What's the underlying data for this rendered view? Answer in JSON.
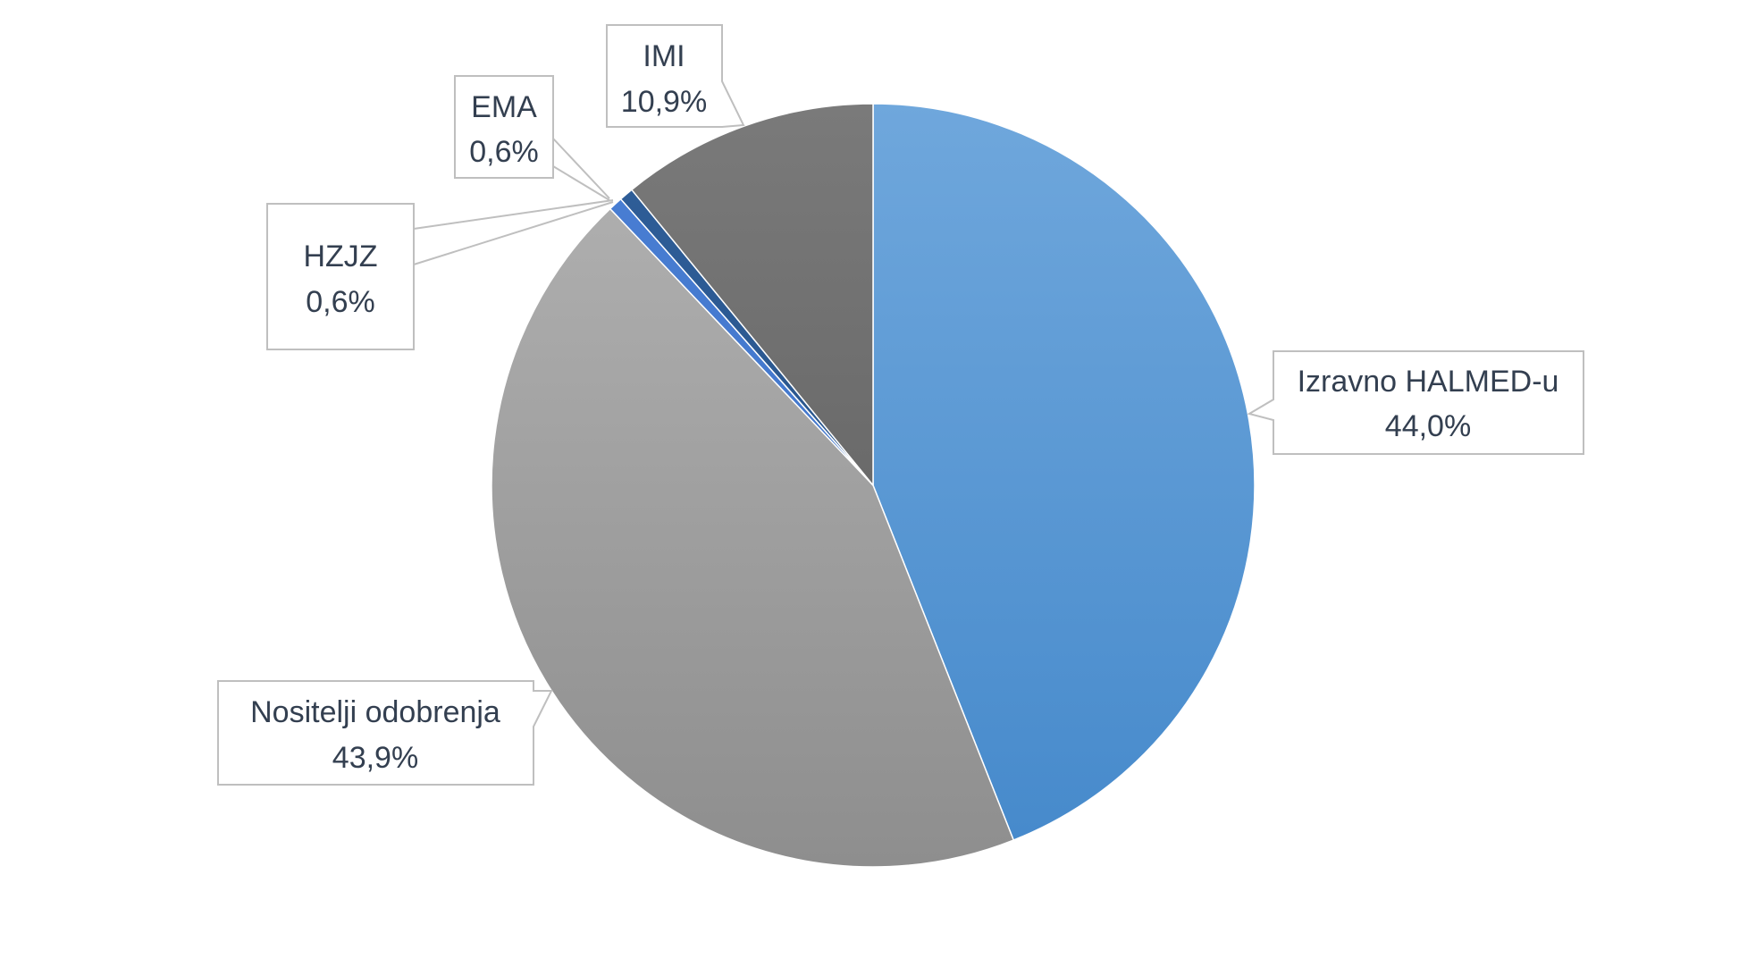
{
  "chart_data": {
    "type": "pie",
    "start_angle_deg": 0,
    "direction": "clockwise",
    "slices": [
      {
        "name": "Izravno HALMED-u",
        "value": 44.0,
        "label_value": "44,0%",
        "color_top": "#6fa7dc",
        "color_bottom": "#4589cb"
      },
      {
        "name": "Nositelji odobrenja",
        "value": 43.9,
        "label_value": "43,9%",
        "color_top": "#b3b3b3",
        "color_bottom": "#8e8e8e"
      },
      {
        "name": "HZJZ",
        "value": 0.6,
        "label_value": "0,6%",
        "color_top": "#4a7fd4",
        "color_bottom": "#3b6fc4"
      },
      {
        "name": "EMA",
        "value": 0.6,
        "label_value": "0,6%",
        "color_top": "#2f5f9a",
        "color_bottom": "#244d80"
      },
      {
        "name": "IMI",
        "value": 10.9,
        "label_value": "10,9%",
        "color_top": "#7a7a7a",
        "color_bottom": "#5a5a5a"
      }
    ],
    "legend": "none"
  }
}
